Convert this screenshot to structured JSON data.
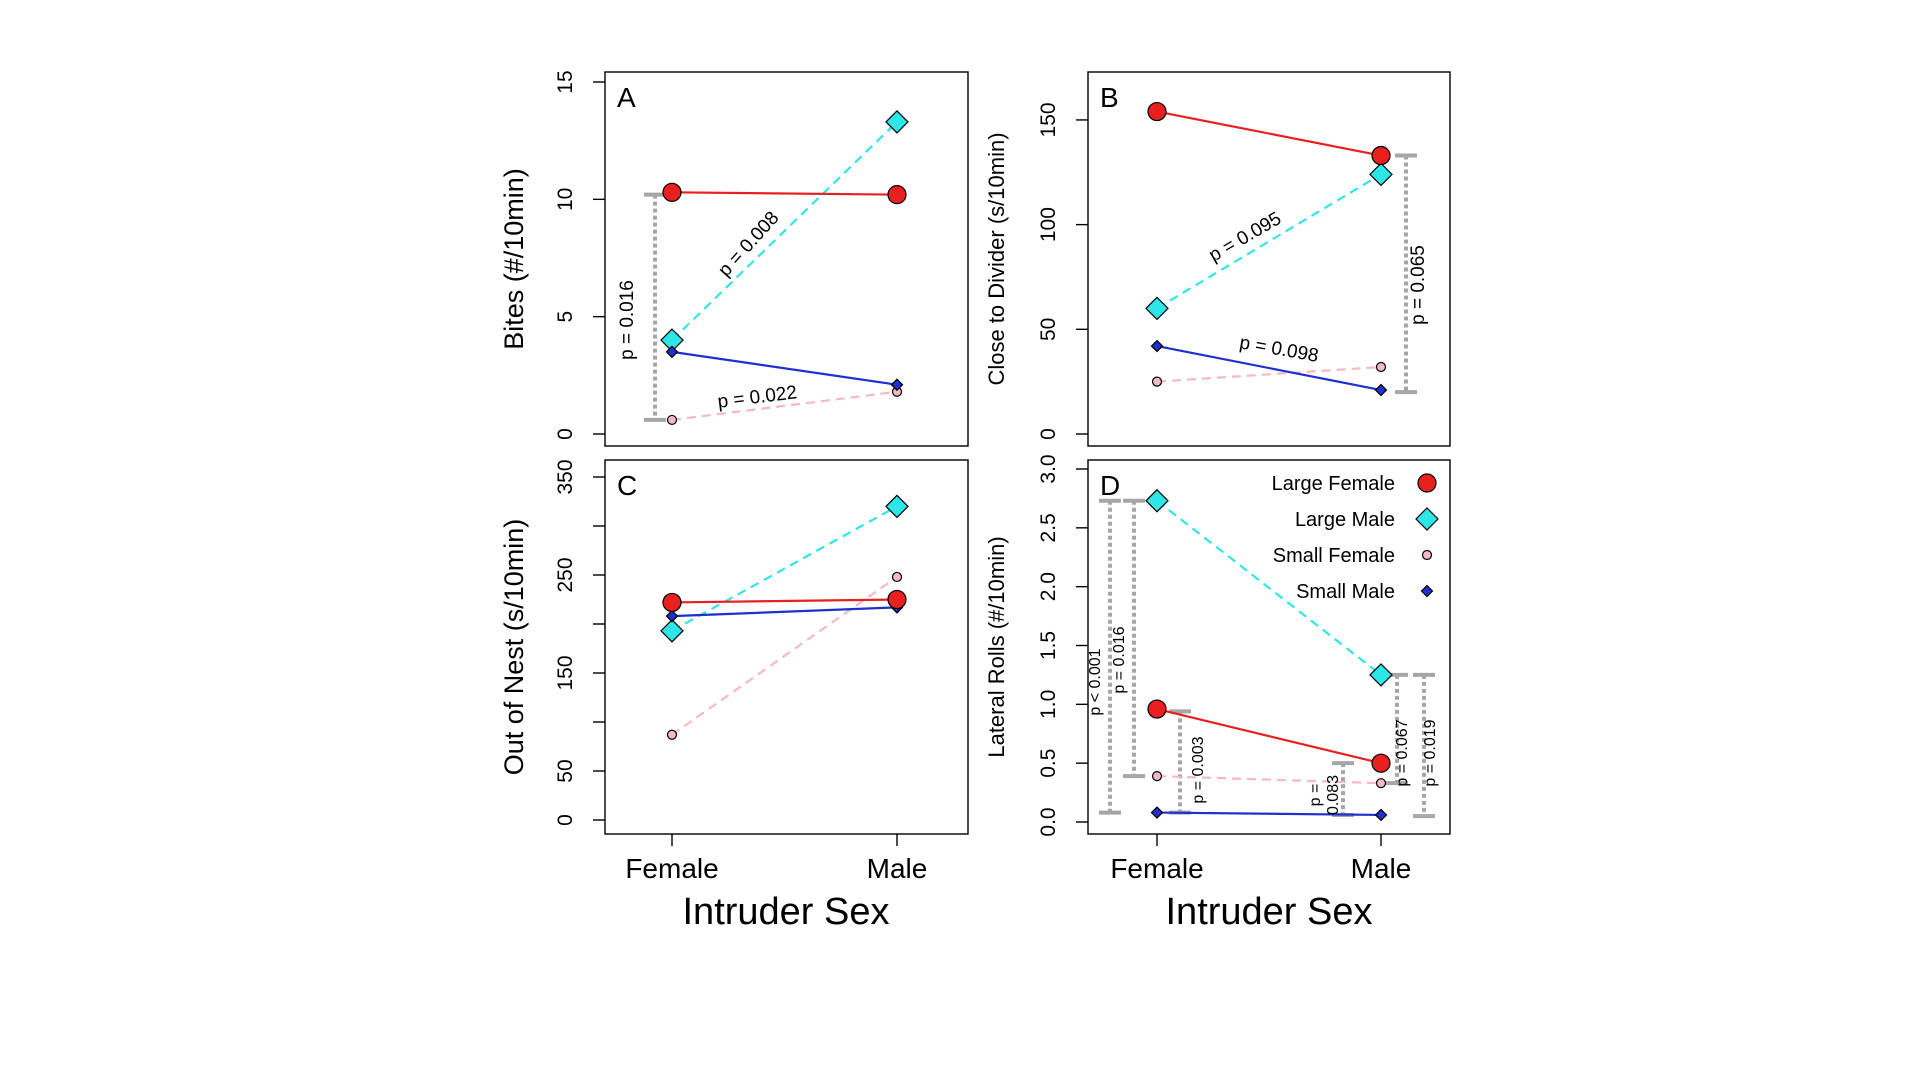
{
  "colors": {
    "large_female": "#e8201f",
    "large_male": "#2ee6e8",
    "small_female": "#f6b8c2",
    "small_male": "#1f2fd0",
    "bracket": "#a6a6a6"
  },
  "x_axis_label": "Intruder Sex",
  "legend": {
    "items": [
      {
        "key": "large_female",
        "label": "Large Female"
      },
      {
        "key": "large_male",
        "label": "Large Male"
      },
      {
        "key": "small_female",
        "label": "Small Female"
      },
      {
        "key": "small_male",
        "label": "Small Male"
      }
    ]
  },
  "chart_data": [
    {
      "type": "line",
      "panel": "A",
      "ylabel": "Bites (#/10min)",
      "categories": [
        "Female",
        "Male"
      ],
      "ylim": [
        0,
        15
      ],
      "yticks": [
        0,
        5,
        10,
        15
      ],
      "series": [
        {
          "name": "Large Female",
          "key": "large_female",
          "values": [
            10.3,
            10.2
          ]
        },
        {
          "name": "Large Male",
          "key": "large_male",
          "values": [
            4.0,
            13.3
          ]
        },
        {
          "name": "Small Female",
          "key": "small_female",
          "values": [
            0.6,
            1.8
          ]
        },
        {
          "name": "Small Male",
          "key": "small_male",
          "values": [
            3.5,
            2.1
          ]
        }
      ],
      "annotations": [
        {
          "text": "p = 0.008",
          "between": "large_male"
        },
        {
          "text": "p = 0.022",
          "between": "small_female"
        },
        {
          "text": "p = 0.016",
          "bracket": [
            0.6,
            10.2
          ],
          "at": "Female"
        }
      ]
    },
    {
      "type": "line",
      "panel": "B",
      "ylabel": "Close to Divider (s/10min)",
      "categories": [
        "Female",
        "Male"
      ],
      "ylim": [
        0,
        160
      ],
      "yticks": [
        0,
        50,
        100,
        150
      ],
      "series": [
        {
          "name": "Large Female",
          "key": "large_female",
          "values": [
            154,
            133
          ]
        },
        {
          "name": "Large Male",
          "key": "large_male",
          "values": [
            60,
            124
          ]
        },
        {
          "name": "Small Female",
          "key": "small_female",
          "values": [
            25,
            32
          ]
        },
        {
          "name": "Small Male",
          "key": "small_male",
          "values": [
            42,
            21
          ]
        }
      ],
      "annotations": [
        {
          "text": "p = 0.095",
          "between": "large_male"
        },
        {
          "text": "p = 0.098",
          "between": "small_male"
        },
        {
          "text": "p = 0.065",
          "bracket": [
            20,
            133
          ],
          "at": "Male"
        }
      ]
    },
    {
      "type": "line",
      "panel": "C",
      "ylabel": "Out of Nest (s/10min)",
      "categories": [
        "Female",
        "Male"
      ],
      "ylim": [
        0,
        350
      ],
      "yticks": [
        0,
        50,
        100,
        150,
        200,
        250,
        300,
        350
      ],
      "ytick_labels": [
        "0",
        "50",
        "",
        "150",
        "",
        "250",
        "",
        "350"
      ],
      "series": [
        {
          "name": "Large Female",
          "key": "large_female",
          "values": [
            222,
            225
          ]
        },
        {
          "name": "Large Male",
          "key": "large_male",
          "values": [
            193,
            320
          ]
        },
        {
          "name": "Small Female",
          "key": "small_female",
          "values": [
            87,
            248
          ]
        },
        {
          "name": "Small Male",
          "key": "small_male",
          "values": [
            208,
            217
          ]
        }
      ],
      "annotations": []
    },
    {
      "type": "line",
      "panel": "D",
      "ylabel": "Lateral Rolls (#/10min)",
      "categories": [
        "Female",
        "Male"
      ],
      "ylim": [
        0,
        3.0
      ],
      "yticks": [
        0.0,
        0.5,
        1.0,
        1.5,
        2.0,
        2.5,
        3.0
      ],
      "ytick_labels": [
        "0.0",
        "0.5",
        "1.0",
        "1.5",
        "2.0",
        "2.5",
        "3.0"
      ],
      "series": [
        {
          "name": "Large Female",
          "key": "large_female",
          "values": [
            0.96,
            0.5
          ]
        },
        {
          "name": "Large Male",
          "key": "large_male",
          "values": [
            2.73,
            1.25
          ]
        },
        {
          "name": "Small Female",
          "key": "small_female",
          "values": [
            0.39,
            0.33
          ]
        },
        {
          "name": "Small Male",
          "key": "small_male",
          "values": [
            0.08,
            0.06
          ]
        }
      ],
      "annotations": [
        {
          "text": "p < 0.001",
          "bracket": [
            0.08,
            2.73
          ],
          "at": "Female"
        },
        {
          "text": "p = 0.016",
          "bracket": [
            0.39,
            2.73
          ],
          "at": "Female"
        },
        {
          "text": "p = 0.003",
          "bracket": [
            0.08,
            0.94
          ],
          "at": "Female"
        },
        {
          "text": "p =",
          "bracket": [
            0.06,
            0.5
          ],
          "at": "Male",
          "line2": "0.083"
        },
        {
          "text": "p = 0.067",
          "bracket": [
            0.33,
            1.25
          ],
          "at": "Male"
        },
        {
          "text": "p = 0.019",
          "bracket": [
            0.05,
            1.25
          ],
          "at": "Male"
        }
      ]
    }
  ]
}
